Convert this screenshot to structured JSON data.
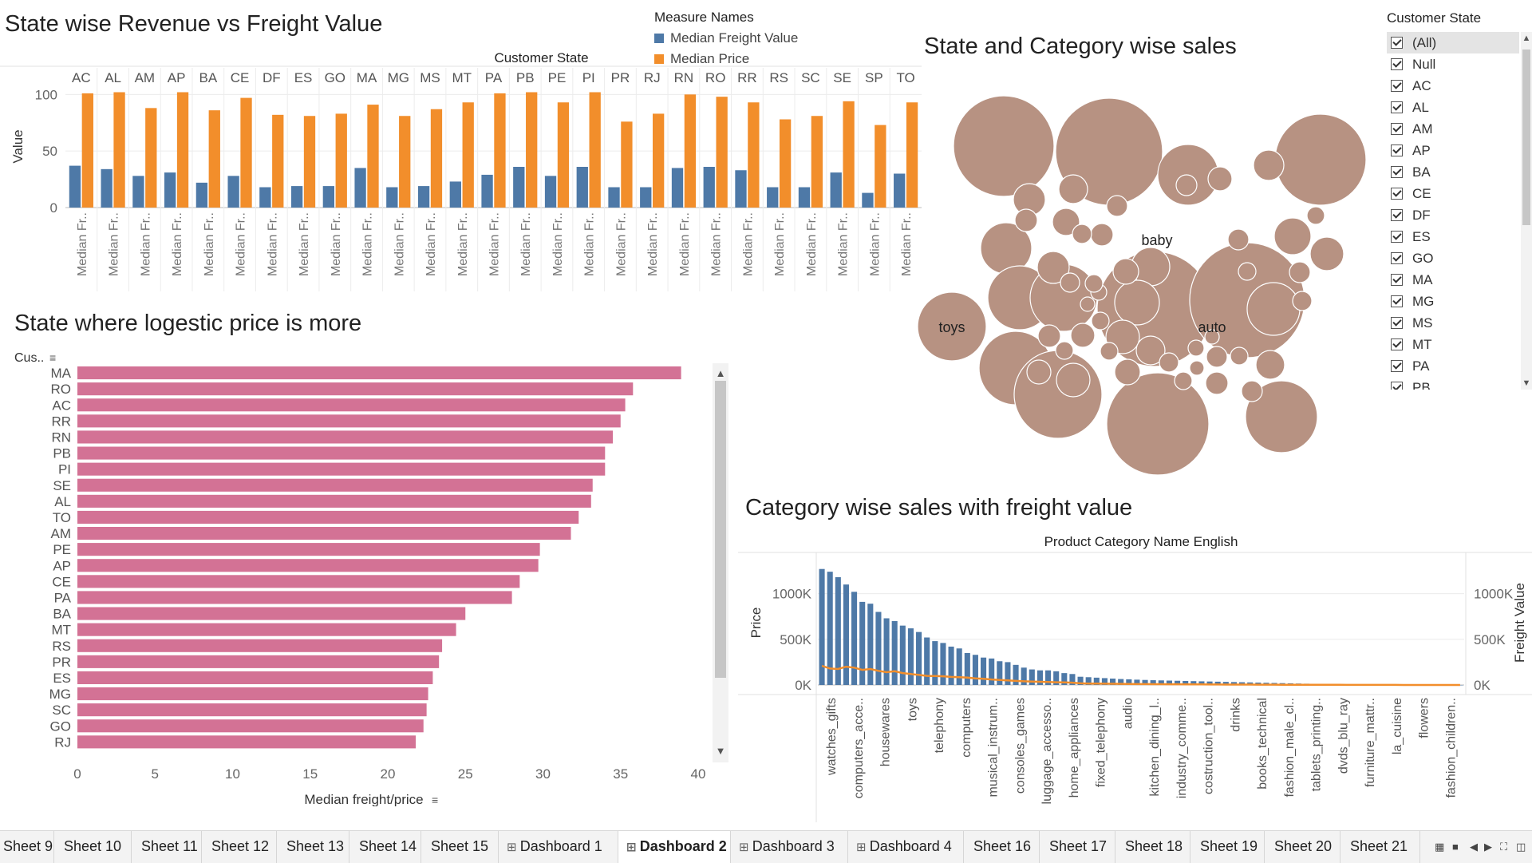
{
  "titles": {
    "revenue_freight": "State wise Revenue vs Freight Value",
    "logistic": "State where logestic price is more",
    "category_state": "State and Category wise sales",
    "category_freight": "Category wise sales with freight value"
  },
  "legend": {
    "title": "Measure Names",
    "items": [
      {
        "label": "Median Freight Value",
        "color": "#4e79a7"
      },
      {
        "label": "Median Price",
        "color": "#f28e2b"
      }
    ]
  },
  "filter": {
    "title": "Customer State",
    "items": [
      "(All)",
      "Null",
      "AC",
      "AL",
      "AM",
      "AP",
      "BA",
      "CE",
      "DF",
      "ES",
      "GO",
      "MA",
      "MG",
      "MS",
      "MT",
      "PA",
      "PB"
    ]
  },
  "tabs": [
    {
      "label": "Sheet 9",
      "icon": ""
    },
    {
      "label": "Sheet 10",
      "icon": ""
    },
    {
      "label": "Sheet 11",
      "icon": ""
    },
    {
      "label": "Sheet 12",
      "icon": ""
    },
    {
      "label": "Sheet 13",
      "icon": ""
    },
    {
      "label": "Sheet 14",
      "icon": ""
    },
    {
      "label": "Sheet 15",
      "icon": ""
    },
    {
      "label": "Dashboard 1",
      "icon": "grid-icon"
    },
    {
      "label": "Dashboard 2",
      "icon": "grid-icon",
      "active": true
    },
    {
      "label": "Dashboard 3",
      "icon": "grid-icon"
    },
    {
      "label": "Dashboard 4",
      "icon": "grid-icon"
    },
    {
      "label": "Sheet 16",
      "icon": ""
    },
    {
      "label": "Sheet 17",
      "icon": ""
    },
    {
      "label": "Sheet 18",
      "icon": ""
    },
    {
      "label": "Sheet 19",
      "icon": ""
    },
    {
      "label": "Sheet 20",
      "icon": ""
    },
    {
      "label": "Sheet 21",
      "icon": ""
    }
  ],
  "chart_data": [
    {
      "type": "bar",
      "id": "state_revenue_freight",
      "title": "State wise Revenue vs Freight Value",
      "header": "Customer State",
      "ylabel": "Value",
      "yticks": [
        0,
        50,
        100
      ],
      "ylim": [
        0,
        108
      ],
      "categories": [
        "AC",
        "AL",
        "AM",
        "AP",
        "BA",
        "CE",
        "DF",
        "ES",
        "GO",
        "MA",
        "MG",
        "MS",
        "MT",
        "PA",
        "PB",
        "PE",
        "PI",
        "PR",
        "RJ",
        "RN",
        "RO",
        "RR",
        "RS",
        "SC",
        "SE",
        "SP",
        "TO"
      ],
      "category_label": "Median Fr..",
      "series": [
        {
          "name": "Median Freight Value",
          "color": "#4e79a7",
          "values": [
            37,
            34,
            28,
            31,
            22,
            28,
            18,
            19,
            19,
            35,
            18,
            19,
            23,
            29,
            36,
            28,
            36,
            18,
            18,
            35,
            36,
            33,
            18,
            18,
            31,
            13,
            30
          ]
        },
        {
          "name": "Median Price",
          "color": "#f28e2b",
          "values": [
            101,
            102,
            88,
            102,
            86,
            97,
            82,
            81,
            83,
            91,
            81,
            87,
            93,
            101,
            102,
            93,
            102,
            76,
            83,
            100,
            98,
            93,
            78,
            81,
            94,
            73,
            93
          ]
        }
      ],
      "grid": true
    },
    {
      "type": "bar",
      "id": "logistic_price",
      "orientation": "horizontal",
      "title": "State where logestic price is more",
      "ylabel": "Cus..",
      "xlabel": "Median freight/price",
      "xticks": [
        0,
        5,
        10,
        15,
        20,
        25,
        30,
        35,
        40
      ],
      "xlim": [
        0,
        40
      ],
      "color": "#d37295",
      "categories": [
        "MA",
        "RO",
        "AC",
        "RR",
        "RN",
        "PB",
        "PI",
        "SE",
        "AL",
        "TO",
        "AM",
        "PE",
        "AP",
        "CE",
        "PA",
        "BA",
        "MT",
        "RS",
        "PR",
        "ES",
        "MG",
        "SC",
        "GO",
        "RJ"
      ],
      "values": [
        38.9,
        35.8,
        35.3,
        35.0,
        34.5,
        34.0,
        34.0,
        33.2,
        33.1,
        32.3,
        31.8,
        29.8,
        29.7,
        28.5,
        28.0,
        25.0,
        24.4,
        23.5,
        23.3,
        22.9,
        22.6,
        22.5,
        22.3,
        21.8
      ]
    },
    {
      "type": "bubble",
      "id": "state_category_sales",
      "title": "State and Category wise sales",
      "color": "#b79282",
      "labels": [
        "baby",
        "toys",
        "auto"
      ]
    },
    {
      "type": "bar",
      "id": "category_freight",
      "title": "Category wise sales with freight value",
      "header": "Product Category Name English",
      "ylabel": "Price",
      "y2label": "Freight Value",
      "yticks": [
        "0K",
        "500K",
        "1000K"
      ],
      "ylim": [
        0,
        1250000
      ],
      "bar_color": "#4e79a7",
      "line_color": "#f28e2b",
      "x_labels": [
        "watches_gifts",
        "computers_acce..",
        "housewares",
        "toys",
        "telephony",
        "computers",
        "musical_instrum..",
        "consoles_games",
        "luggage_accesso..",
        "home_appliances",
        "fixed_telephony",
        "audio",
        "kitchen_dining_l..",
        "industry_comme..",
        "costruction_tool..",
        "drinks",
        "books_technical",
        "fashion_male_cl..",
        "tablets_printing..",
        "dvds_blu_ray",
        "furniture_mattr..",
        "la_cuisine",
        "flowers",
        "fashion_children.."
      ],
      "price_values": [
        1270000,
        1240000,
        1180000,
        1100000,
        1020000,
        910000,
        890000,
        800000,
        730000,
        700000,
        650000,
        620000,
        580000,
        520000,
        480000,
        460000,
        420000,
        400000,
        350000,
        330000,
        300000,
        290000,
        260000,
        250000,
        220000,
        190000,
        170000,
        160000,
        160000,
        150000,
        130000,
        120000,
        90000,
        85000,
        80000,
        75000,
        70000,
        65000,
        62000,
        58000,
        55000,
        52000,
        50000,
        48000,
        46000,
        44000,
        42000,
        40000,
        38000,
        36000,
        34000,
        32000,
        30000,
        28000,
        26000,
        24000,
        22000,
        20000,
        18000,
        16000,
        14000,
        12000,
        10000,
        9000,
        8000,
        7000,
        6000,
        5000,
        4000,
        3500,
        3000,
        2500,
        2000,
        1500,
        1200,
        1000,
        800,
        600,
        400,
        200
      ],
      "freight_values": [
        210000,
        180000,
        175000,
        200000,
        190000,
        165000,
        175000,
        155000,
        140000,
        150000,
        130000,
        120000,
        110000,
        100000,
        98000,
        95000,
        88000,
        85000,
        80000,
        72000,
        68000,
        60000,
        55000,
        50000,
        45000,
        40000,
        38000,
        35000,
        32000,
        30000,
        28000,
        25000,
        18000,
        16000,
        15000,
        14000,
        13000,
        12000,
        11000,
        10000,
        9500,
        9000,
        8500,
        8000,
        7500,
        7000,
        6500,
        6000,
        5500,
        5000,
        4800,
        4500,
        4200,
        4000,
        3800,
        3500,
        3200,
        3000,
        2800,
        2500,
        2200,
        2000,
        1800,
        1600,
        1400,
        1200,
        1000,
        900,
        800,
        700,
        600,
        500,
        400,
        300,
        250,
        200,
        150,
        100,
        80,
        50
      ]
    }
  ]
}
